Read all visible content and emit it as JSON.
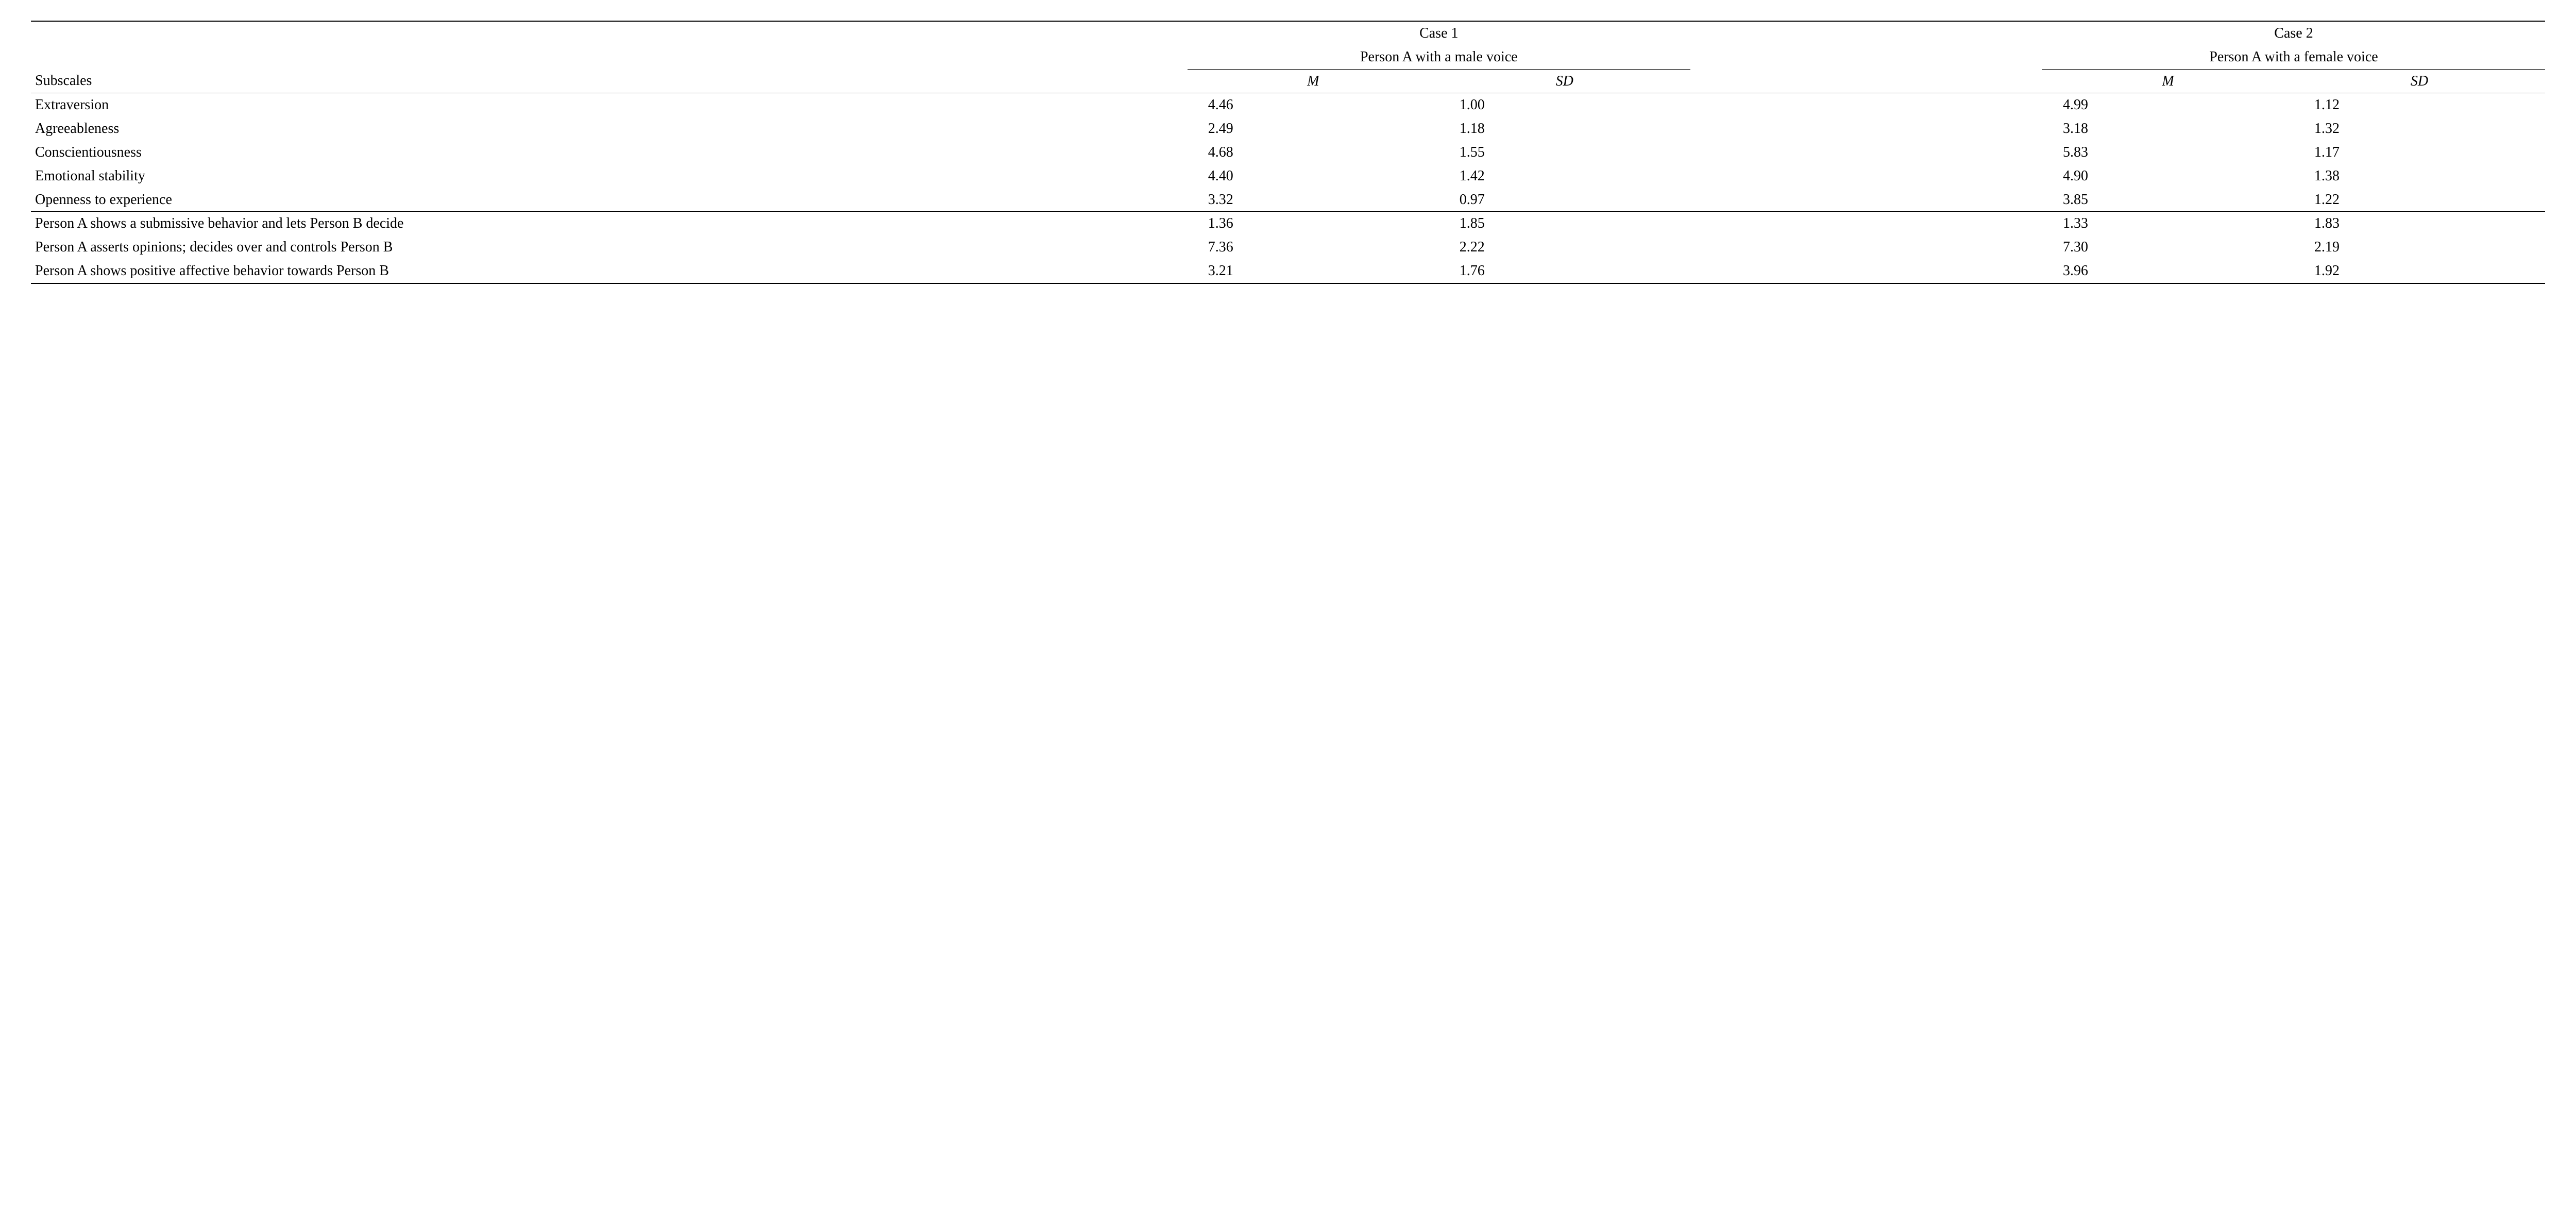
{
  "table": {
    "row_header_label": "Subscales",
    "groups": [
      {
        "title_line1": "Case 1",
        "title_line2": "Person A with a male voice",
        "stat_labels": [
          "M",
          "SD"
        ]
      },
      {
        "title_line1": "Case 2",
        "title_line2": "Person A with a female voice",
        "stat_labels": [
          "M",
          "SD"
        ]
      }
    ],
    "section1": [
      {
        "label": "Extraversion",
        "g1": [
          "4.46",
          "1.00"
        ],
        "g2": [
          "4.99",
          "1.12"
        ]
      },
      {
        "label": "Agreeableness",
        "g1": [
          "2.49",
          "1.18"
        ],
        "g2": [
          "3.18",
          "1.32"
        ]
      },
      {
        "label": "Conscientiousness",
        "g1": [
          "4.68",
          "1.55"
        ],
        "g2": [
          "5.83",
          "1.17"
        ]
      },
      {
        "label": "Emotional stability",
        "g1": [
          "4.40",
          "1.42"
        ],
        "g2": [
          "4.90",
          "1.38"
        ]
      },
      {
        "label": "Openness to experience",
        "g1": [
          "3.32",
          "0.97"
        ],
        "g2": [
          "3.85",
          "1.22"
        ]
      }
    ],
    "section2": [
      {
        "label": "Person A shows a submissive behavior and lets Person B decide",
        "g1": [
          "1.36",
          "1.85"
        ],
        "g2": [
          "1.33",
          "1.83"
        ]
      },
      {
        "label": "Person A asserts opinions; decides over and controls Person B",
        "g1": [
          "7.36",
          "2.22"
        ],
        "g2": [
          "7.30",
          "2.19"
        ]
      },
      {
        "label": "Person A shows positive affective behavior towards Person B",
        "g1": [
          "3.21",
          "1.76"
        ],
        "g2": [
          "3.96",
          "1.92"
        ]
      }
    ],
    "colors": {
      "rule": "#000000",
      "text": "#000000",
      "background": "#ffffff"
    },
    "font": {
      "family": "Times New Roman",
      "size_pt": 21
    }
  }
}
